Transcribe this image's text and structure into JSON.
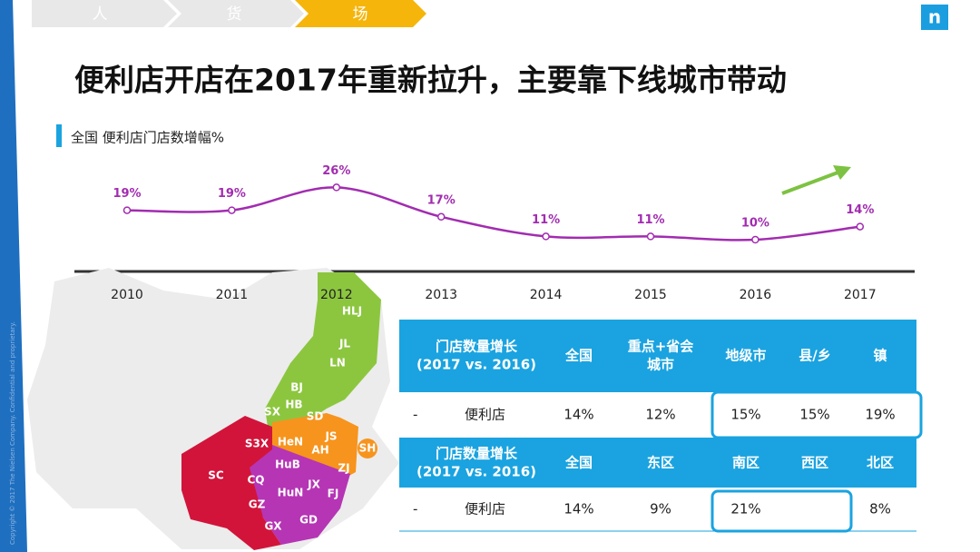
{
  "nav": [
    "人",
    "货",
    "场"
  ],
  "title": "便利店开店在2017年重新拉升，主要靠下线城市带动",
  "logo": "n",
  "copyright": "Copyright © 2017 The Nielsen Company. Confidential and proprietary.",
  "chart_data": {
    "type": "line",
    "title": "全国 便利店门店数增幅%",
    "categories": [
      "2010",
      "2011",
      "2012",
      "2013",
      "2014",
      "2015",
      "2016",
      "2017"
    ],
    "values": [
      19,
      19,
      26,
      17,
      11,
      11,
      10,
      14
    ],
    "value_labels": [
      "19%",
      "19%",
      "26%",
      "17%",
      "11%",
      "11%",
      "10%",
      "14%"
    ],
    "color": "#a22cb0"
  },
  "map": {
    "labels": [
      {
        "code": "HLJ",
        "region": "green"
      },
      {
        "code": "JL",
        "region": "green"
      },
      {
        "code": "LN",
        "region": "green"
      },
      {
        "code": "BJ",
        "region": "green"
      },
      {
        "code": "HB",
        "region": "green"
      },
      {
        "code": "SX",
        "region": "green"
      },
      {
        "code": "SD",
        "region": "green"
      },
      {
        "code": "HeN",
        "region": "orange"
      },
      {
        "code": "JS",
        "region": "orange"
      },
      {
        "code": "AH",
        "region": "orange"
      },
      {
        "code": "ZJ",
        "region": "orange"
      },
      {
        "code": "SH",
        "region": "orange"
      },
      {
        "code": "S3X",
        "region": "red"
      },
      {
        "code": "HuB",
        "region": "purple"
      },
      {
        "code": "SC",
        "region": "red"
      },
      {
        "code": "CQ",
        "region": "red"
      },
      {
        "code": "HuN",
        "region": "purple"
      },
      {
        "code": "JX",
        "region": "purple"
      },
      {
        "code": "FJ",
        "region": "purple"
      },
      {
        "code": "GZ",
        "region": "red"
      },
      {
        "code": "GD",
        "region": "purple"
      },
      {
        "code": "GX",
        "region": "red"
      }
    ]
  },
  "table": {
    "blocks": [
      {
        "header": [
          [
            "门店数量增长",
            "(2017 vs. 2016)"
          ],
          [
            "全国"
          ],
          [
            "重点+省会",
            "城市"
          ],
          [
            "地级市"
          ],
          [
            "县/乡"
          ],
          [
            "镇"
          ]
        ],
        "row": [
          "-",
          "便利店",
          "14%",
          "12%",
          "15%",
          "15%",
          "19%"
        ]
      },
      {
        "header": [
          [
            "门店数量增长",
            "(2017 vs. 2016)"
          ],
          [
            "全国"
          ],
          [
            "东区"
          ],
          [
            "南区"
          ],
          [
            "西区"
          ],
          [
            "北区"
          ]
        ],
        "row": [
          "-",
          "便利店",
          "14%",
          "9%",
          "21%",
          null,
          "8%"
        ]
      }
    ]
  }
}
